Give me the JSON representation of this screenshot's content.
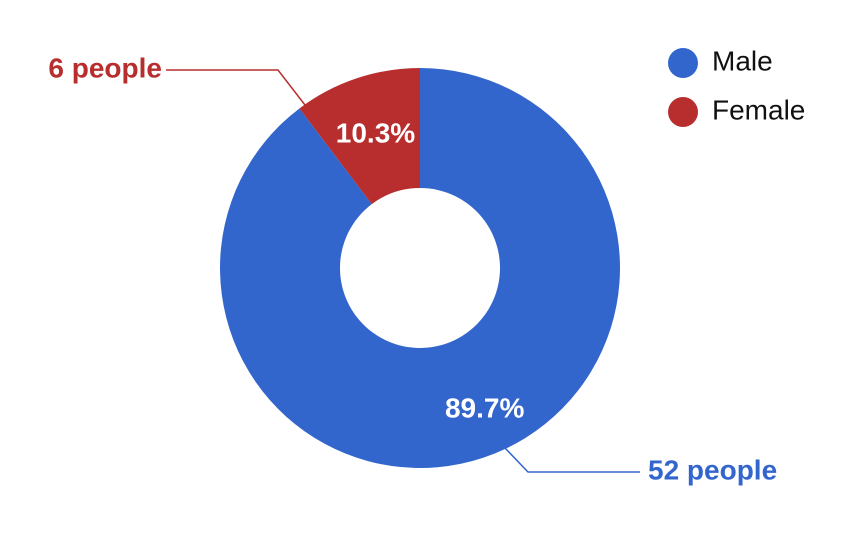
{
  "chart_data": {
    "type": "donut",
    "categories": [
      "Male",
      "Female"
    ],
    "values": [
      89.7,
      10.3
    ],
    "value_labels": [
      "89.7%",
      "10.3%"
    ],
    "counts": [
      52,
      6
    ],
    "count_labels": [
      "52 people",
      "6 people"
    ],
    "colors": [
      "#3366cc",
      "#b82e2e"
    ],
    "legend": "top-right"
  }
}
